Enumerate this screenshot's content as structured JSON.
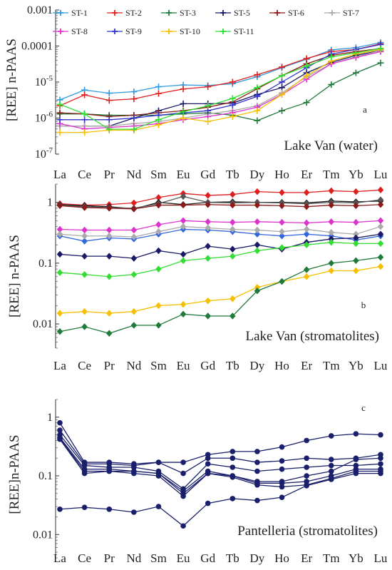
{
  "chart_data": [
    {
      "type": "line",
      "panel_letter": "a",
      "caption": "Lake Van (water)",
      "ylabel": "[REE] n-PAAS",
      "yscale": "log",
      "ylim": [
        1e-07,
        0.001
      ],
      "y_ticks": [
        {
          "value": 0.001,
          "label": "0.001"
        },
        {
          "value": 0.0001,
          "label": "0.0001"
        },
        {
          "value": 1e-05,
          "label": "10-5"
        },
        {
          "value": 1e-06,
          "label": "10-6"
        },
        {
          "value": 1e-07,
          "label": "10-7"
        }
      ],
      "categories": [
        "La",
        "Ce",
        "Pr",
        "Nd",
        "Sm",
        "Eu",
        "Gd",
        "Tb",
        "Dy",
        "Ho",
        "Er",
        "Tm",
        "Yb",
        "Lu"
      ],
      "show_x_labels": true,
      "legend": "top",
      "series": [
        {
          "name": "ST-1",
          "color": "#3399dd",
          "marker": "plus",
          "values": [
            3.2e-06,
            6e-06,
            4.9e-06,
            5.4e-06,
            7.4e-06,
            8.3e-06,
            8e-06,
            9e-06,
            1.4e-05,
            2.5e-05,
            4.3e-05,
            7.8e-05,
            9e-05,
            0.000125
          ]
        },
        {
          "name": "ST-2",
          "color": "#e02020",
          "marker": "plus",
          "values": [
            2.2e-06,
            4.4e-06,
            3.1e-06,
            3.4e-06,
            4.8e-06,
            6.4e-06,
            7.4e-06,
            1e-05,
            1.6e-05,
            2.6e-05,
            4.5e-05,
            7e-05,
            8e-05,
            0.000115
          ]
        },
        {
          "name": "ST-3",
          "color": "#1f7a3a",
          "marker": "plus",
          "values": [
            1.3e-06,
            1.3e-06,
            1.2e-06,
            1.2e-06,
            1.2e-06,
            1.3e-06,
            1.4e-06,
            1.2e-06,
            8.5e-07,
            1.6e-06,
            2.7e-06,
            8.5e-06,
            1.8e-05,
            3.4e-05
          ]
        },
        {
          "name": "ST-5",
          "color": "#1a1a66",
          "marker": "plus",
          "values": [
            6e-07,
            6e-07,
            6e-07,
            1e-06,
            1.6e-06,
            2.5e-06,
            2.5e-06,
            2.6e-06,
            4.5e-06,
            7e-06,
            1.8e-05,
            3.5e-05,
            5.5e-05,
            7.5e-05
          ]
        },
        {
          "name": "ST-6",
          "color": "#8b1a1a",
          "marker": "plus",
          "values": [
            1.4e-06,
            1.3e-06,
            1.1e-06,
            1.2e-06,
            1.4e-06,
            1.6e-06,
            2e-06,
            2.8e-06,
            6.5e-06,
            1.5e-05,
            3.2e-05,
            5.5e-05,
            7e-05,
            8.5e-05
          ]
        },
        {
          "name": "ST-7",
          "color": "#aaaaaa",
          "marker": "plus",
          "values": [
            6e-07,
            6e-07,
            6e-07,
            7e-07,
            8e-07,
            1e-06,
            1.3e-06,
            1.6e-06,
            2.2e-06,
            5e-06,
            1.4e-05,
            3.2e-05,
            5e-05,
            7.5e-05
          ]
        },
        {
          "name": "ST-8",
          "color": "#dd33cc",
          "marker": "plus",
          "values": [
            7e-07,
            5e-07,
            5.5e-07,
            6e-07,
            7e-07,
            9e-07,
            1.1e-06,
            1.4e-06,
            2e-06,
            4.5e-06,
            1.2e-05,
            3.2e-05,
            4.8e-05,
            7e-05
          ]
        },
        {
          "name": "ST-9",
          "color": "#3333cc",
          "marker": "plus",
          "values": [
            9e-07,
            9e-07,
            9e-07,
            1e-06,
            1.2e-06,
            1.4e-06,
            1.6e-06,
            2.3e-06,
            4e-06,
            1e-05,
            2.5e-05,
            6e-05,
            8e-05,
            0.00011
          ]
        },
        {
          "name": "ST-10",
          "color": "#f5c000",
          "marker": "plus",
          "values": [
            4e-07,
            4e-07,
            4.6e-07,
            4.6e-07,
            6.5e-07,
            1e-06,
            8e-07,
            1.1e-06,
            1.6e-06,
            4.5e-06,
            1.5e-05,
            3.8e-05,
            6e-05,
            8e-05
          ]
        },
        {
          "name": "ST-11",
          "color": "#33dd33",
          "marker": "plus",
          "values": [
            2.4e-06,
            1.3e-06,
            4.9e-07,
            4.9e-07,
            9e-07,
            1.5e-06,
            2.2e-06,
            3.5e-06,
            7e-06,
            1.5e-05,
            2.8e-05,
            5e-05,
            6.5e-05,
            8.5e-05
          ]
        }
      ]
    },
    {
      "type": "line",
      "panel_letter": "b",
      "caption": "Lake Van (stromatolites)",
      "ylabel": "[REE] n-PAAS",
      "yscale": "log",
      "ylim": [
        0.004,
        2
      ],
      "y_ticks": [
        {
          "value": 1,
          "label": "1"
        },
        {
          "value": 0.1,
          "label": "0.1"
        },
        {
          "value": 0.01,
          "label": "0.01"
        }
      ],
      "categories": [
        "La",
        "Ce",
        "Pr",
        "Nd",
        "Sm",
        "Eu",
        "Gd",
        "Tb",
        "Dy",
        "Ho",
        "Er",
        "Tm",
        "Yb",
        "Lu"
      ],
      "show_x_labels": true,
      "series": [
        {
          "color": "#e02020",
          "marker": "diamond",
          "values": [
            0.95,
            0.9,
            0.92,
            0.98,
            1.2,
            1.4,
            1.3,
            1.35,
            1.5,
            1.45,
            1.45,
            1.55,
            1.5,
            1.6
          ]
        },
        {
          "color": "#1a1a1a",
          "marker": "diamond",
          "values": [
            0.92,
            0.88,
            0.85,
            0.78,
            1.0,
            0.92,
            1.0,
            1.02,
            1.0,
            1.0,
            0.98,
            1.05,
            1.02,
            1.05
          ]
        },
        {
          "color": "#555555",
          "marker": "diamond",
          "values": [
            0.9,
            0.85,
            0.82,
            0.8,
            0.95,
            1.25,
            1.0,
            0.98,
            1.0,
            0.98,
            0.95,
            1.0,
            0.98,
            1.1
          ]
        },
        {
          "color": "#8b1a1a",
          "marker": "diamond",
          "values": [
            0.88,
            0.82,
            0.8,
            0.78,
            0.9,
            0.9,
            0.92,
            0.9,
            0.9,
            0.88,
            0.85,
            0.9,
            0.88,
            0.92
          ]
        },
        {
          "color": "#dd33cc",
          "marker": "diamond",
          "values": [
            0.36,
            0.35,
            0.35,
            0.35,
            0.43,
            0.5,
            0.48,
            0.47,
            0.48,
            0.47,
            0.46,
            0.48,
            0.47,
            0.5
          ]
        },
        {
          "color": "#3366dd",
          "marker": "diamond",
          "values": [
            0.28,
            0.23,
            0.26,
            0.25,
            0.3,
            0.36,
            0.35,
            0.33,
            0.3,
            0.28,
            0.3,
            0.28,
            0.24,
            0.28
          ]
        },
        {
          "color": "#aaaaaa",
          "marker": "diamond",
          "values": [
            0.3,
            0.28,
            0.28,
            0.27,
            0.33,
            0.4,
            0.38,
            0.36,
            0.35,
            0.33,
            0.36,
            0.32,
            0.3,
            0.4
          ]
        },
        {
          "color": "#1a1a66",
          "marker": "diamond",
          "values": [
            0.14,
            0.13,
            0.13,
            0.12,
            0.16,
            0.14,
            0.19,
            0.17,
            0.2,
            0.17,
            0.22,
            0.25,
            0.26,
            0.3
          ]
        },
        {
          "color": "#33dd33",
          "marker": "diamond",
          "values": [
            0.07,
            0.065,
            0.06,
            0.065,
            0.08,
            0.11,
            0.12,
            0.13,
            0.16,
            0.18,
            0.2,
            0.22,
            0.21,
            0.21
          ]
        },
        {
          "color": "#f5c000",
          "marker": "diamond",
          "values": [
            0.015,
            0.016,
            0.015,
            0.016,
            0.02,
            0.021,
            0.024,
            0.026,
            0.04,
            0.05,
            0.06,
            0.075,
            0.075,
            0.088
          ]
        },
        {
          "color": "#1f7a3a",
          "marker": "diamond",
          "values": [
            0.0075,
            0.009,
            0.007,
            0.0095,
            0.0095,
            0.0145,
            0.0135,
            0.0135,
            0.035,
            0.05,
            0.078,
            0.1,
            0.11,
            0.125
          ]
        }
      ]
    },
    {
      "type": "line",
      "panel_letter": "c",
      "caption": "Pantelleria (stromatolites)",
      "ylabel": "[REE]n-PAAS",
      "yscale": "log",
      "ylim": [
        0.004,
        2
      ],
      "y_ticks": [
        {
          "value": 1,
          "label": "1"
        },
        {
          "value": 0.1,
          "label": "0.1"
        },
        {
          "value": 0.01,
          "label": "0.01"
        }
      ],
      "categories": [
        "La",
        "Ce",
        "Pr",
        "Nd",
        "Sm",
        "Eu",
        "Gd",
        "Tb",
        "Dy",
        "Ho",
        "Er",
        "Tm",
        "Yb",
        "Lu"
      ],
      "show_x_labels": true,
      "series": [
        {
          "color": "#1a1f6b",
          "marker": "circle",
          "values": [
            0.8,
            0.17,
            0.17,
            0.16,
            0.17,
            0.17,
            0.23,
            0.26,
            0.26,
            0.31,
            0.4,
            0.48,
            0.52,
            0.5
          ]
        },
        {
          "color": "#1a1f6b",
          "marker": "circle",
          "values": [
            0.6,
            0.16,
            0.16,
            0.15,
            0.17,
            0.11,
            0.2,
            0.2,
            0.17,
            0.18,
            0.2,
            0.19,
            0.2,
            0.23
          ]
        },
        {
          "color": "#1a1f6b",
          "marker": "circle",
          "values": [
            0.5,
            0.15,
            0.14,
            0.14,
            0.12,
            0.06,
            0.16,
            0.14,
            0.12,
            0.13,
            0.14,
            0.15,
            0.15,
            0.16
          ]
        },
        {
          "color": "#1a1f6b",
          "marker": "circle",
          "values": [
            0.45,
            0.13,
            0.13,
            0.12,
            0.11,
            0.055,
            0.12,
            0.1,
            0.08,
            0.08,
            0.1,
            0.12,
            0.19,
            0.2
          ]
        },
        {
          "color": "#1a1f6b",
          "marker": "circle",
          "values": [
            0.43,
            0.12,
            0.12,
            0.12,
            0.11,
            0.05,
            0.11,
            0.1,
            0.075,
            0.075,
            0.08,
            0.1,
            0.13,
            0.13
          ]
        },
        {
          "color": "#1a1f6b",
          "marker": "circle",
          "values": [
            0.42,
            0.11,
            0.12,
            0.11,
            0.1,
            0.045,
            0.11,
            0.095,
            0.07,
            0.065,
            0.07,
            0.09,
            0.12,
            0.12
          ]
        },
        {
          "color": "#1a1f6b",
          "marker": "circle",
          "values": [
            0.027,
            0.029,
            0.027,
            0.024,
            0.03,
            0.014,
            0.034,
            0.041,
            0.038,
            0.043,
            0.068,
            0.087,
            0.11,
            0.11
          ]
        }
      ]
    }
  ]
}
